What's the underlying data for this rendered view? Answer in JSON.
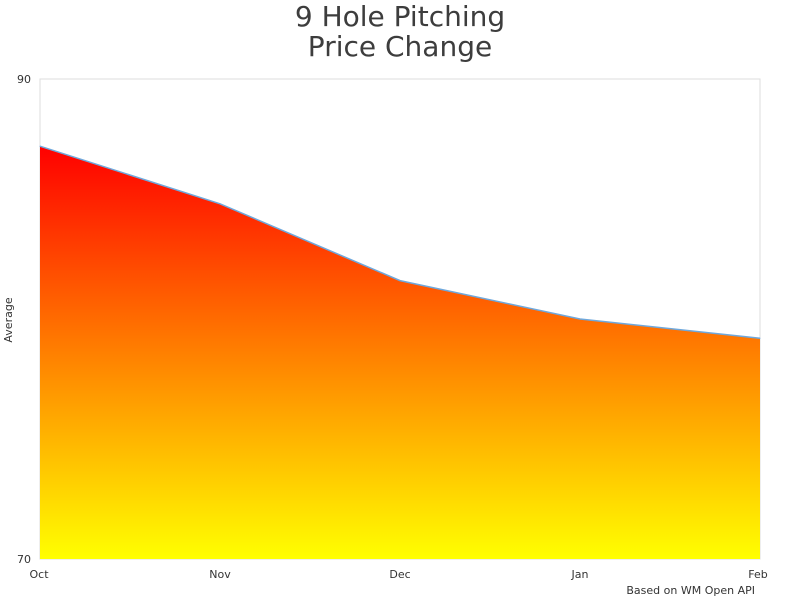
{
  "chart_data": {
    "type": "area",
    "title": [
      "9 Hole Pitching",
      "Price Change"
    ],
    "xlabel": "",
    "ylabel": "Average",
    "categories": [
      "Oct",
      "Nov",
      "Dec",
      "Jan",
      "Feb"
    ],
    "series": [
      {
        "values": [
          87.2,
          84.8,
          81.6,
          80.0,
          79.2
        ]
      }
    ],
    "ylim": [
      70,
      90
    ],
    "yticks": [
      "70",
      "90"
    ],
    "grid": false,
    "fill_gradient": [
      "#ff0000",
      "#ffff00"
    ],
    "line_color": "#6fa8dc",
    "plot_border_color": "#dddddd"
  },
  "credits": "Based on WM Open API"
}
